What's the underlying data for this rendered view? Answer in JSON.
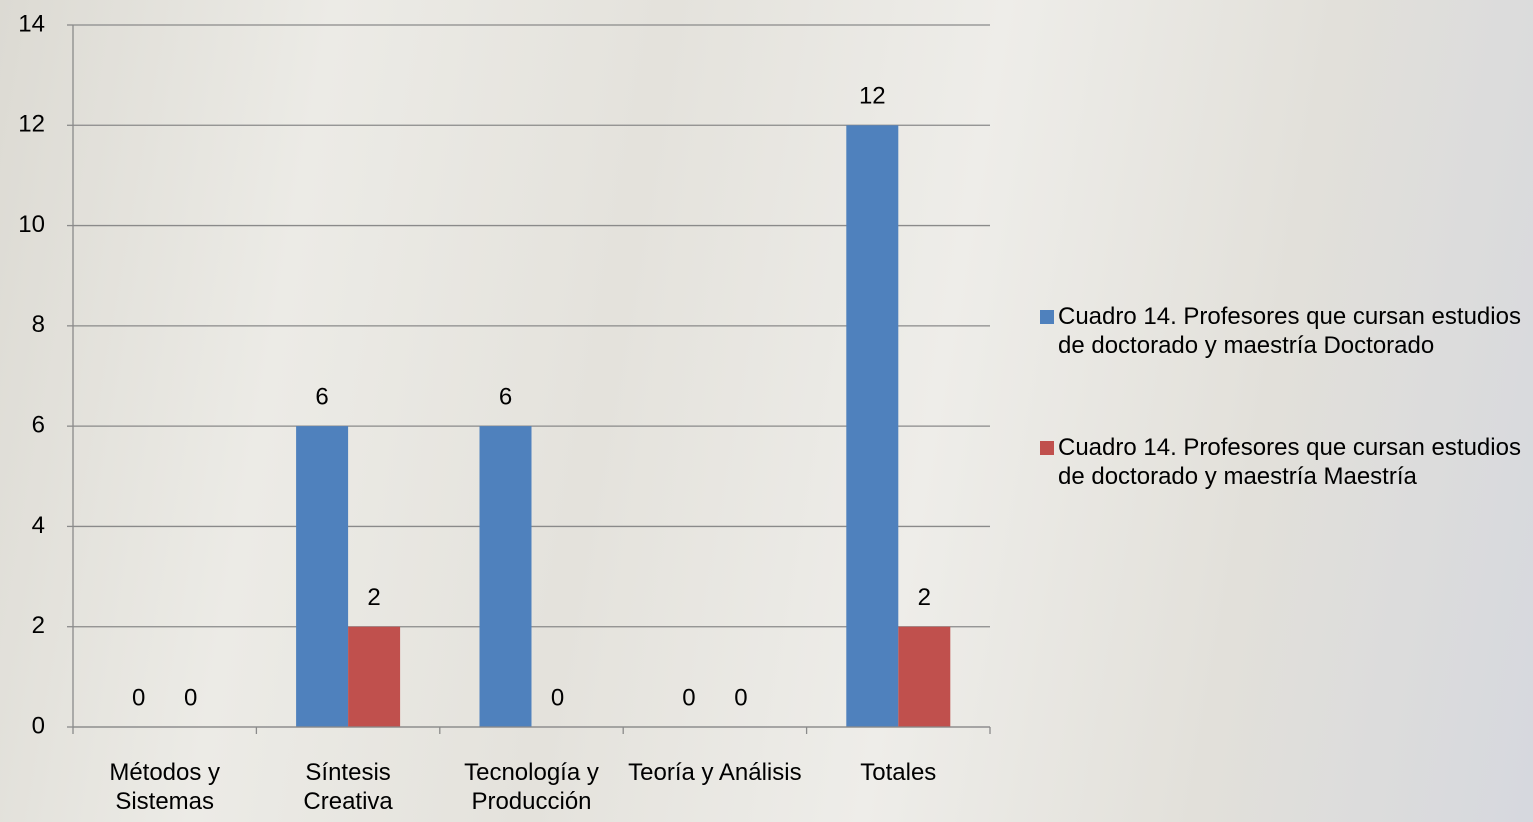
{
  "chart_data": {
    "type": "bar",
    "categories": [
      "Métodos y Sistemas",
      "Síntesis Creativa",
      "Tecnología y Producción",
      "Teoría y Análisis",
      "Totales"
    ],
    "series": [
      {
        "name": "Cuadro 14. Profesores que cursan estudios de doctorado y maestría Doctorado",
        "color": "#4f81bd",
        "values": [
          0,
          6,
          6,
          0,
          12
        ]
      },
      {
        "name": "Cuadro 14. Profesores que cursan estudios de doctorado y maestría Maestría",
        "color": "#c0504d",
        "values": [
          0,
          2,
          0,
          0,
          2
        ]
      }
    ],
    "ylim": [
      0,
      14
    ],
    "yticks": [
      0,
      2,
      4,
      6,
      8,
      10,
      12,
      14
    ],
    "grid": true,
    "legend": "right"
  }
}
